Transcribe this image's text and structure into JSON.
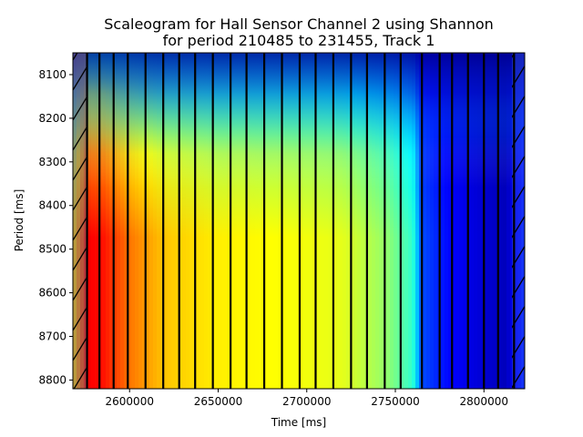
{
  "chart_data": {
    "type": "heatmap",
    "title": "Scaleogram for Hall Sensor Channel 2 using Shannon",
    "subtitle": "for period 210485 to 231455, Track 1",
    "xlabel": "Time [ms]",
    "ylabel": "Period [ms]",
    "xlim": [
      2568000,
      2823000
    ],
    "ylim": [
      8050,
      8820
    ],
    "y_inverted": true,
    "grid": false,
    "colormap": "jet",
    "x_ticks": [
      2600000,
      2650000,
      2700000,
      2750000,
      2800000
    ],
    "x_tick_labels": [
      "2600000",
      "2650000",
      "2700000",
      "2750000",
      "2800000"
    ],
    "y_ticks": [
      8100,
      8200,
      8300,
      8400,
      8500,
      8600,
      8700,
      8800
    ],
    "y_tick_labels": [
      "8100",
      "8200",
      "8300",
      "8400",
      "8500",
      "8600",
      "8700",
      "8800"
    ],
    "cone_of_influence_hatched": true,
    "vertical_marker_lines_x": [
      2576000,
      2583000,
      2591000,
      2599000,
      2609000,
      2619000,
      2628000,
      2637000,
      2647000,
      2657000,
      2666000,
      2676000,
      2686000,
      2696000,
      2705000,
      2715000,
      2725000,
      2734000,
      2744000,
      2753000,
      2765000,
      2775000,
      2782000,
      2791000,
      2800000,
      2808000,
      2817000
    ],
    "intensity_profile": [
      {
        "x": 2568000,
        "value": 0.6
      },
      {
        "x": 2576000,
        "value": 0.88
      },
      {
        "x": 2585000,
        "value": 0.86
      },
      {
        "x": 2600000,
        "value": 0.76
      },
      {
        "x": 2620000,
        "value": 0.68
      },
      {
        "x": 2650000,
        "value": 0.64
      },
      {
        "x": 2690000,
        "value": 0.62
      },
      {
        "x": 2720000,
        "value": 0.6
      },
      {
        "x": 2745000,
        "value": 0.52
      },
      {
        "x": 2760000,
        "value": 0.42
      },
      {
        "x": 2765000,
        "value": 0.2
      },
      {
        "x": 2780000,
        "value": 0.13
      },
      {
        "x": 2800000,
        "value": 0.08
      },
      {
        "x": 2812000,
        "value": 0.06
      },
      {
        "x": 2823000,
        "value": 0.16
      }
    ]
  }
}
